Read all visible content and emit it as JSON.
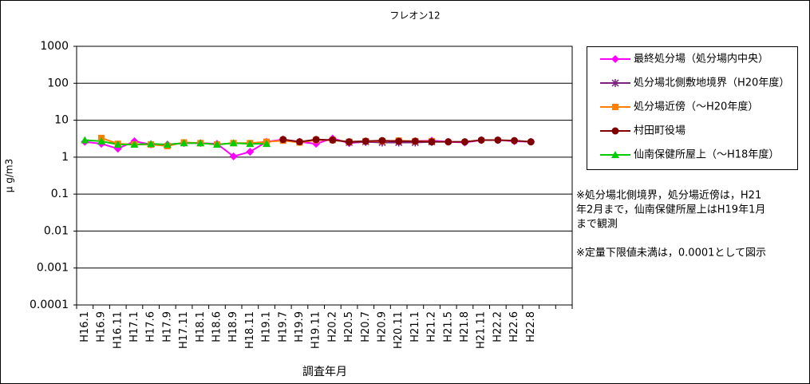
{
  "chart_data": {
    "type": "line",
    "title": "フレオン12",
    "x_label": "調査年月",
    "y_label": "μ g/m3",
    "log_y": true,
    "grid": true,
    "legend": "right",
    "ylim": [
      0.0001,
      1000
    ],
    "yticks": [
      0.0001,
      0.001,
      0.01,
      0.1,
      1,
      10,
      100,
      1000
    ],
    "categories": [
      "H16.1",
      "H16.9",
      "H16.11",
      "H17.1",
      "H17.6",
      "H17.9",
      "H17.11",
      "H18.1",
      "H18.6",
      "H18.9",
      "H18.11",
      "H19.1",
      "H19.7",
      "H19.9",
      "H19.11",
      "H20.2",
      "H20.5",
      "H20.7",
      "H20.9",
      "H20.11",
      "H21.1",
      "H21.2",
      "H21.5",
      "H21.8",
      "H21.11",
      "H22.2",
      "H22.6",
      "H22.8",
      null,
      null
    ],
    "series": [
      {
        "name": "最終処分場（処分場内中央）",
        "color": "#ff00ff",
        "marker": "diamond",
        "values": [
          2.6,
          2.3,
          1.7,
          2.7,
          2.2,
          2.2,
          2.4,
          2.4,
          2.3,
          1.05,
          1.4,
          2.6,
          3.0,
          2.6,
          2.3,
          3.2,
          2.4,
          2.6,
          2.6,
          2.6,
          2.7,
          2.8,
          2.6,
          2.5,
          2.9,
          2.9,
          2.7,
          2.6,
          null,
          null
        ]
      },
      {
        "name": "処分場北側敷地境界（H20年度）",
        "color": "#7f1f7f",
        "marker": "star",
        "values": [
          null,
          null,
          null,
          null,
          null,
          null,
          null,
          null,
          null,
          null,
          null,
          null,
          null,
          null,
          null,
          null,
          2.5,
          2.6,
          2.5,
          2.5,
          2.5,
          2.6,
          null,
          null,
          null,
          null,
          null,
          null,
          null,
          null
        ]
      },
      {
        "name": "処分場近傍（～H20年度）",
        "color": "#ff8000",
        "marker": "square",
        "values": [
          null,
          3.3,
          2.3,
          2.2,
          2.2,
          2.0,
          2.5,
          2.4,
          2.2,
          2.4,
          2.4,
          2.6,
          2.8,
          2.5,
          2.9,
          2.9,
          2.6,
          2.7,
          2.7,
          2.8,
          2.7,
          2.7,
          null,
          null,
          null,
          null,
          null,
          null,
          null,
          null
        ]
      },
      {
        "name": "村田町役場",
        "color": "#800000",
        "marker": "circle",
        "values": [
          null,
          null,
          null,
          null,
          null,
          null,
          null,
          null,
          null,
          null,
          null,
          null,
          3.0,
          2.6,
          3.0,
          2.9,
          2.6,
          2.7,
          2.8,
          2.7,
          2.7,
          2.6,
          2.6,
          2.6,
          2.9,
          2.9,
          2.8,
          2.6,
          null,
          null
        ]
      },
      {
        "name": "仙南保健所屋上（～H18年度）",
        "color": "#00cc00",
        "marker": "triangle",
        "values": [
          2.9,
          2.7,
          2.2,
          2.2,
          2.3,
          2.2,
          2.4,
          2.4,
          2.2,
          2.4,
          2.3,
          2.3,
          null,
          null,
          null,
          null,
          null,
          null,
          null,
          null,
          null,
          null,
          null,
          null,
          null,
          null,
          null,
          null,
          null,
          null
        ]
      }
    ],
    "annotations": [
      "※処分場北側境界，処分場近傍は，H21",
      "年2月まで，仙南保健所屋上はH19年1月",
      "まで観測",
      "※定量下限値未満は，0.0001として図示"
    ]
  }
}
